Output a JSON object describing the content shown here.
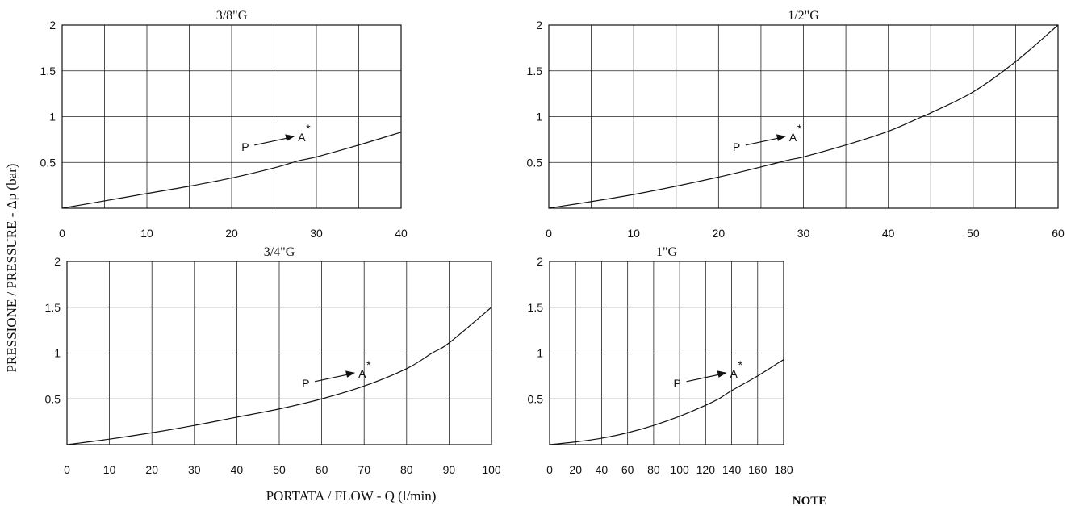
{
  "ylabel": "PRESSIONE / PRESSURE -  Δp (bar)",
  "xlabel": "PORTATA / FLOW - Q (l/min)",
  "note": "NOTE",
  "annotation": {
    "from": "P",
    "to": "A",
    "mark": "*"
  },
  "chart_data": [
    {
      "type": "line",
      "title": "3/8\"G",
      "xlim": [
        0,
        40
      ],
      "ylim": [
        0,
        2
      ],
      "xticks": [
        0,
        10,
        20,
        30,
        40
      ],
      "xgrid": [
        5,
        10,
        15,
        20,
        25,
        30,
        35
      ],
      "yticks": [
        0.5,
        1,
        1.5,
        2
      ],
      "series": [
        {
          "x": [
            0,
            5,
            10,
            15,
            20,
            25,
            28,
            30,
            35,
            40
          ],
          "y": [
            0,
            0.08,
            0.16,
            0.24,
            0.33,
            0.44,
            0.52,
            0.56,
            0.69,
            0.83
          ]
        }
      ],
      "arrow_at": [
        22.5,
        0.68
      ]
    },
    {
      "type": "line",
      "title": "1/2\"G",
      "xlim": [
        0,
        60
      ],
      "ylim": [
        0,
        2
      ],
      "xticks": [
        0,
        10,
        20,
        30,
        40,
        50,
        60
      ],
      "xgrid": [
        5,
        10,
        15,
        20,
        25,
        30,
        35,
        40,
        45,
        50,
        55
      ],
      "yticks": [
        0.5,
        1,
        1.5,
        2
      ],
      "series": [
        {
          "x": [
            0,
            10,
            20,
            28,
            30,
            35,
            40,
            44,
            45,
            50,
            55,
            60
          ],
          "y": [
            0,
            0.15,
            0.34,
            0.52,
            0.56,
            0.69,
            0.84,
            1.0,
            1.04,
            1.27,
            1.6,
            2.0
          ]
        }
      ],
      "arrow_at": [
        23,
        0.68
      ]
    },
    {
      "type": "line",
      "title": "3/4\"G",
      "xlim": [
        0,
        100
      ],
      "ylim": [
        0,
        2
      ],
      "xticks": [
        0,
        10,
        20,
        30,
        40,
        50,
        60,
        70,
        80,
        90,
        100
      ],
      "xgrid": [
        10,
        20,
        30,
        40,
        50,
        60,
        70,
        80,
        90
      ],
      "yticks": [
        0.5,
        1,
        1.5,
        2
      ],
      "series": [
        {
          "x": [
            0,
            10,
            20,
            30,
            40,
            50,
            60,
            70,
            80,
            86,
            90,
            100
          ],
          "y": [
            0,
            0.06,
            0.13,
            0.21,
            0.3,
            0.39,
            0.5,
            0.64,
            0.83,
            1.0,
            1.11,
            1.5
          ]
        }
      ],
      "arrow_at": [
        58,
        0.68
      ]
    },
    {
      "type": "line",
      "title": "1\"G",
      "xlim": [
        0,
        180
      ],
      "ylim": [
        0,
        2
      ],
      "xticks": [
        0,
        20,
        40,
        60,
        80,
        100,
        120,
        140,
        160,
        180
      ],
      "xgrid": [
        20,
        40,
        60,
        80,
        100,
        120,
        140,
        160
      ],
      "yticks": [
        0.5,
        1,
        1.5,
        2
      ],
      "series": [
        {
          "x": [
            0,
            20,
            40,
            60,
            80,
            100,
            120,
            130,
            140,
            160,
            180
          ],
          "y": [
            0,
            0.03,
            0.07,
            0.13,
            0.21,
            0.31,
            0.43,
            0.5,
            0.59,
            0.75,
            0.93
          ]
        }
      ],
      "arrow_at": [
        104,
        0.68
      ]
    }
  ]
}
